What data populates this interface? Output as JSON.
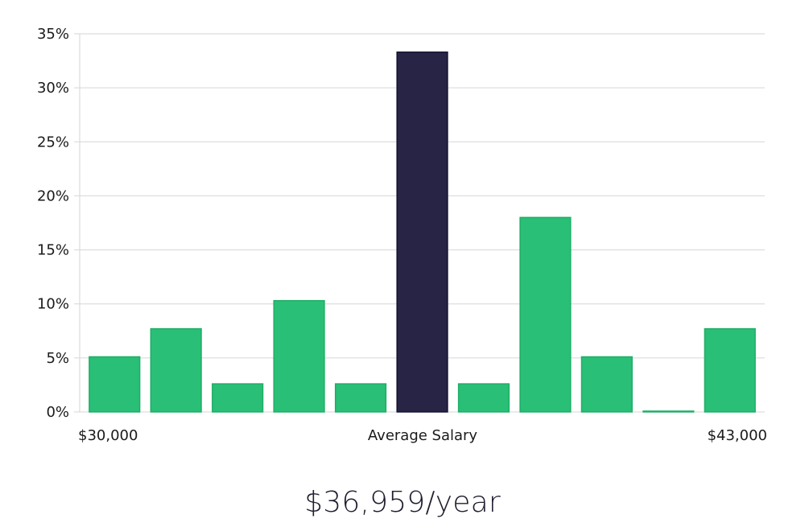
{
  "chart_data": {
    "type": "bar",
    "title": "",
    "xlabel": "Average Salary",
    "ylabel": "",
    "x_start_label": "$30,000",
    "x_end_label": "$43,000",
    "ylim": [
      0,
      35
    ],
    "yticks": [
      0,
      5,
      10,
      15,
      20,
      25,
      30,
      35
    ],
    "ytick_labels": [
      "0%",
      "5%",
      "10%",
      "15%",
      "20%",
      "25%",
      "30%",
      "35%"
    ],
    "grid": true,
    "values": [
      5.1,
      7.7,
      2.6,
      10.3,
      2.6,
      33.3,
      2.6,
      18.0,
      5.1,
      0.0,
      7.7
    ],
    "highlight_index": 5,
    "colors": {
      "bar": "#2abf76",
      "bar_stroke": "#1eae66",
      "highlight": "#272445",
      "highlight_stroke": "#131230"
    }
  },
  "summary": {
    "average_salary": "$36,959/year"
  }
}
